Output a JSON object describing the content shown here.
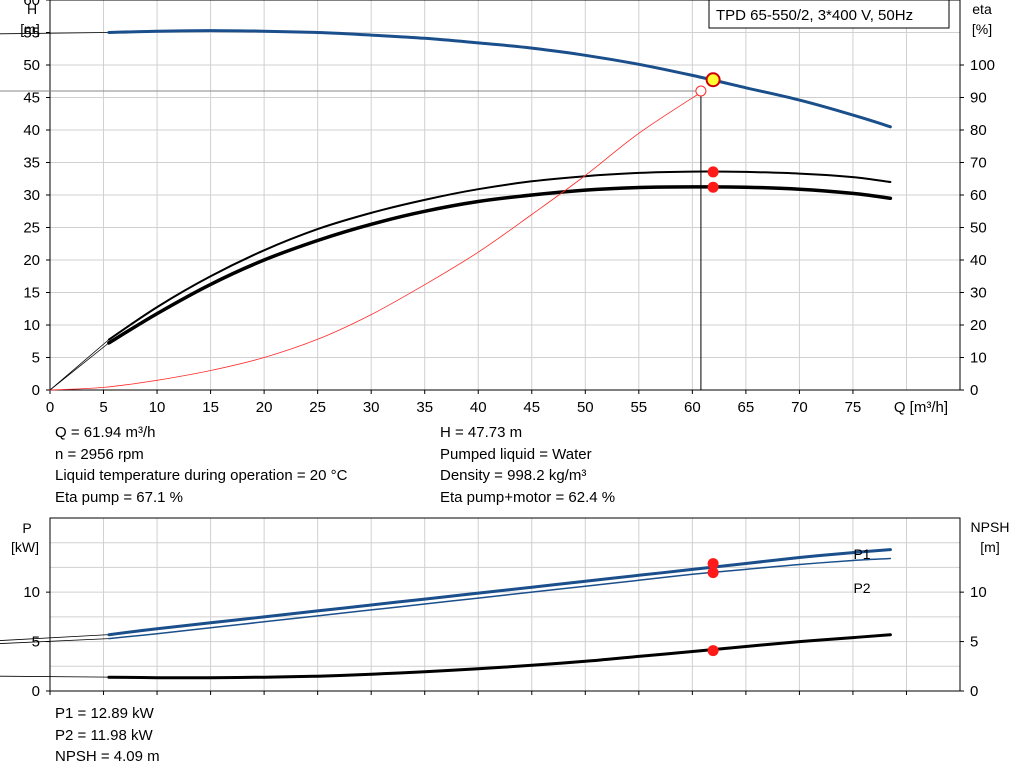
{
  "chart_data": [
    {
      "type": "line",
      "title_box": "TPD 65-550/2, 3*400 V, 50Hz",
      "x_axis": {
        "label": "Q [m³/h]",
        "range": [
          0,
          85
        ],
        "ticks": [
          0,
          5,
          10,
          15,
          20,
          25,
          30,
          35,
          40,
          45,
          50,
          55,
          60,
          65,
          70,
          75
        ]
      },
      "y_left": {
        "label_top": "H",
        "label_unit": "[m]",
        "range": [
          0,
          60
        ],
        "ticks": [
          0,
          5,
          10,
          15,
          20,
          25,
          30,
          35,
          40,
          45,
          50,
          55,
          60
        ]
      },
      "y_right": {
        "label_top": "eta",
        "label_unit": "[%]",
        "range": [
          0,
          120
        ],
        "ticks": [
          0,
          10,
          20,
          30,
          40,
          50,
          60,
          70,
          80,
          90,
          100
        ]
      },
      "grid": true,
      "series": [
        {
          "axis": "left",
          "color": "#1a4f8b",
          "width": 3,
          "x": [
            5.5,
            10,
            15,
            20,
            25,
            30,
            35,
            40,
            45,
            50,
            55,
            60,
            65,
            70,
            75,
            78.5
          ],
          "y": [
            55.0,
            55.2,
            55.3,
            55.2,
            55.0,
            54.6,
            54.1,
            53.4,
            52.6,
            51.5,
            50.1,
            48.4,
            46.5,
            44.6,
            42.3,
            40.5
          ]
        },
        {
          "axis": "right",
          "color": "#000000",
          "width": 2,
          "x": [
            5.5,
            10,
            15,
            20,
            25,
            30,
            35,
            40,
            45,
            50,
            55,
            60,
            65,
            70,
            75,
            78.5
          ],
          "y": [
            15.5,
            25.5,
            35,
            43,
            49.5,
            54.5,
            58.5,
            61.8,
            64.2,
            65.8,
            66.8,
            67.2,
            67.1,
            66.6,
            65.5,
            64
          ]
        },
        {
          "axis": "right",
          "color": "#000000",
          "width": 3.5,
          "x": [
            5.5,
            10,
            15,
            20,
            25,
            30,
            35,
            40,
            45,
            50,
            55,
            60,
            65,
            70,
            75,
            78.5
          ],
          "y": [
            14.5,
            23.5,
            32.5,
            40,
            46,
            51,
            55,
            58,
            60,
            61.5,
            62.3,
            62.5,
            62.4,
            61.8,
            60.5,
            59
          ]
        },
        {
          "axis": "left",
          "color": "#ff2a2a",
          "width": 0.8,
          "x": [
            0,
            5,
            10,
            15,
            20,
            25,
            30,
            35,
            40,
            45,
            50,
            55,
            61
          ],
          "y": [
            0,
            0.4,
            1.5,
            3.0,
            5.0,
            7.8,
            11.6,
            16.2,
            21.2,
            27.0,
            33.0,
            39.5,
            46.0
          ]
        }
      ],
      "extensions": [
        {
          "axis": "left",
          "color": "#000000",
          "x": [
            0,
            5.5
          ],
          "y": [
            54.8,
            55.0
          ]
        },
        {
          "axis": "right",
          "color": "#000000",
          "x": [
            0,
            5.5
          ],
          "y": [
            0,
            15.5
          ]
        },
        {
          "axis": "right",
          "color": "#000000",
          "x": [
            0,
            5.5
          ],
          "y": [
            0,
            14.5
          ]
        }
      ],
      "duty_point": {
        "q": 61.94,
        "h": 47.73,
        "eta_motor": 67.1,
        "eta_pump": 62.4
      },
      "reference_lines": {
        "h": 46,
        "q": 60.8
      },
      "open_marker": {
        "q": 60.8,
        "h": 46
      },
      "info": [
        {
          "left": "Q = 61.94 m³/h",
          "right": "H = 47.73 m"
        },
        {
          "left": "n = 2956 rpm",
          "right": "Pumped liquid = Water"
        },
        {
          "left": "Liquid temperature during operation = 20 °C",
          "right": "Density = 998.2 kg/m³"
        },
        {
          "left": "Eta pump = 67.1 %",
          "right": "Eta pump+motor = 62.4 %"
        }
      ]
    },
    {
      "type": "line",
      "x_axis": {
        "range": [
          0,
          85
        ]
      },
      "y_left": {
        "label_top": "P",
        "label_unit": "[kW]",
        "range": [
          0,
          17.5
        ],
        "ticks": [
          0,
          5,
          10
        ]
      },
      "y_right": {
        "label_top": "NPSH",
        "label_unit": "[m]",
        "range": [
          0,
          17.5
        ],
        "ticks": [
          0,
          5,
          10
        ]
      },
      "grid": true,
      "series": [
        {
          "name": "P1",
          "axis": "left",
          "color": "#1a4f8b",
          "width": 3,
          "x": [
            5.5,
            10,
            15,
            20,
            25,
            30,
            35,
            40,
            45,
            50,
            55,
            60,
            65,
            70,
            75,
            78.5
          ],
          "y": [
            5.7,
            6.3,
            6.9,
            7.5,
            8.1,
            8.7,
            9.3,
            9.9,
            10.5,
            11.1,
            11.7,
            12.3,
            12.9,
            13.5,
            14.0,
            14.3
          ]
        },
        {
          "name": "P2",
          "axis": "left",
          "color": "#1a4f8b",
          "width": 1.5,
          "x": [
            5.5,
            10,
            15,
            20,
            25,
            30,
            35,
            40,
            45,
            50,
            55,
            60,
            65,
            70,
            75,
            78.5
          ],
          "y": [
            5.3,
            5.8,
            6.4,
            7.0,
            7.6,
            8.2,
            8.8,
            9.4,
            10.0,
            10.6,
            11.2,
            11.8,
            12.3,
            12.8,
            13.2,
            13.4
          ]
        },
        {
          "axis": "right",
          "color": "#000000",
          "width": 3,
          "x": [
            5.5,
            10,
            15,
            20,
            25,
            30,
            35,
            40,
            45,
            50,
            55,
            60,
            65,
            70,
            75,
            78.5
          ],
          "y": [
            1.4,
            1.35,
            1.35,
            1.4,
            1.5,
            1.7,
            1.95,
            2.25,
            2.6,
            3.0,
            3.5,
            4.0,
            4.5,
            5.0,
            5.4,
            5.7
          ]
        }
      ],
      "extensions": [
        {
          "axis": "left",
          "color": "#000000",
          "x": [
            0,
            5.5
          ],
          "y": [
            5.1,
            5.7
          ]
        },
        {
          "axis": "left",
          "color": "#000000",
          "x": [
            0,
            5.5
          ],
          "y": [
            4.8,
            5.3
          ]
        },
        {
          "axis": "right",
          "color": "#000000",
          "x": [
            0,
            5.5
          ],
          "y": [
            1.5,
            1.4
          ]
        }
      ],
      "duty_point": {
        "q": 61.94,
        "p1": 12.89,
        "p2": 11.98,
        "npsh": 4.09
      },
      "info": [
        "P1 = 12.89 kW",
        "P2 = 11.98 kW",
        "NPSH = 4.09 m"
      ]
    }
  ]
}
